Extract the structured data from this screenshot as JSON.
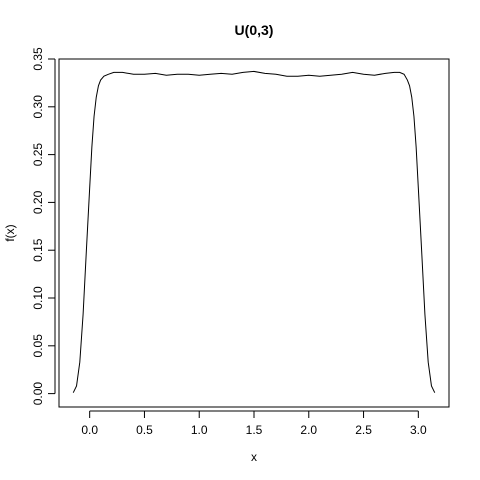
{
  "chart_data": {
    "type": "line",
    "title": "U(0,3)",
    "xlabel": "x",
    "ylabel": "f(x)",
    "xlim": [
      -0.28,
      3.28
    ],
    "ylim": [
      -0.014,
      0.35
    ],
    "xticks": [
      0.0,
      0.5,
      1.0,
      1.5,
      2.0,
      2.5,
      3.0
    ],
    "xtick_labels": [
      "0.0",
      "0.5",
      "1.0",
      "1.5",
      "2.0",
      "2.5",
      "3.0"
    ],
    "yticks": [
      0.0,
      0.05,
      0.1,
      0.15,
      0.2,
      0.25,
      0.3,
      0.35
    ],
    "ytick_labels": [
      "0.00",
      "0.05",
      "0.10",
      "0.15",
      "0.20",
      "0.25",
      "0.30",
      "0.35"
    ],
    "grid": false,
    "series": [
      {
        "x": [
          -0.15,
          -0.12,
          -0.09,
          -0.06,
          -0.03,
          0.0,
          0.02,
          0.04,
          0.06,
          0.08,
          0.1,
          0.13,
          0.17,
          0.22,
          0.3,
          0.4,
          0.5,
          0.6,
          0.7,
          0.8,
          0.9,
          1.0,
          1.1,
          1.2,
          1.3,
          1.4,
          1.5,
          1.6,
          1.7,
          1.8,
          1.9,
          2.0,
          2.1,
          2.2,
          2.3,
          2.4,
          2.5,
          2.6,
          2.7,
          2.78,
          2.83,
          2.87,
          2.9,
          2.92,
          2.94,
          2.96,
          2.98,
          3.0,
          3.03,
          3.06,
          3.09,
          3.12,
          3.15
        ],
        "y": [
          0.001,
          0.008,
          0.033,
          0.083,
          0.15,
          0.215,
          0.258,
          0.29,
          0.31,
          0.322,
          0.328,
          0.332,
          0.334,
          0.336,
          0.336,
          0.334,
          0.334,
          0.335,
          0.333,
          0.334,
          0.334,
          0.333,
          0.334,
          0.335,
          0.334,
          0.336,
          0.337,
          0.335,
          0.334,
          0.332,
          0.332,
          0.333,
          0.332,
          0.333,
          0.334,
          0.336,
          0.334,
          0.333,
          0.335,
          0.336,
          0.336,
          0.334,
          0.328,
          0.322,
          0.31,
          0.29,
          0.258,
          0.215,
          0.15,
          0.083,
          0.033,
          0.008,
          0.001
        ]
      }
    ]
  }
}
